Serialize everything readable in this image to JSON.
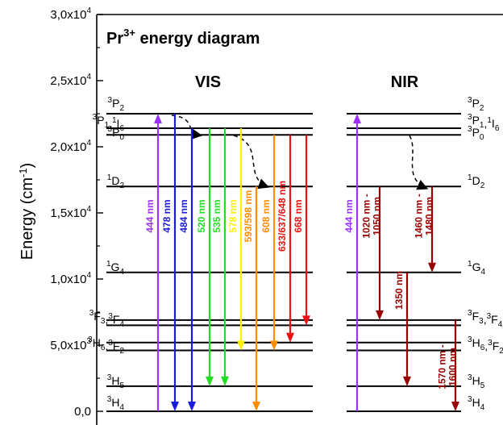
{
  "title": {
    "main": "Pr",
    "sup": "3+",
    "rest": " energy diagram"
  },
  "sections": {
    "vis": "VIS",
    "nir": "NIR"
  },
  "y_axis": {
    "label": "Energy (cm",
    "label_sup": "-1",
    "label_end": ")",
    "range": [
      0,
      30000
    ],
    "ticks": [
      {
        "value": 0,
        "mant": "0,0",
        "exp": ""
      },
      {
        "value": 5000,
        "mant": "5,0x10",
        "exp": "3"
      },
      {
        "value": 10000,
        "mant": "1,0x10",
        "exp": "4"
      },
      {
        "value": 15000,
        "mant": "1,5x10",
        "exp": "4"
      },
      {
        "value": 20000,
        "mant": "2,0x10",
        "exp": "4"
      },
      {
        "value": 25000,
        "mant": "2,5x10",
        "exp": "4"
      },
      {
        "value": 30000,
        "mant": "3,0x10",
        "exp": "4"
      }
    ]
  },
  "levels": [
    {
      "id": "3P2",
      "energy": 22500,
      "label": "3P2"
    },
    {
      "id": "3P1",
      "energy": 21400,
      "label": "3P1,1I6"
    },
    {
      "id": "3P0",
      "energy": 20900,
      "label": "3P0"
    },
    {
      "id": "1D2",
      "energy": 17000,
      "label": "1D2"
    },
    {
      "id": "1G4",
      "energy": 10500,
      "label": "1G4"
    },
    {
      "id": "3F4",
      "energy": 6900,
      "label": "3F3,3F4"
    },
    {
      "id": "3F3",
      "energy": 6500,
      "label": ""
    },
    {
      "id": "3F2",
      "energy": 5200,
      "label": "3H6,3F2"
    },
    {
      "id": "3H6",
      "energy": 4600,
      "label": ""
    },
    {
      "id": "3H5",
      "energy": 1900,
      "label": "3H5"
    },
    {
      "id": "3H4",
      "energy": 0,
      "label": "3H4"
    }
  ],
  "level_labels": {
    "vis": [
      {
        "id": "3P2",
        "energy": 22500,
        "parts": [
          [
            "3",
            "P"
          ],
          [
            "",
            "2"
          ]
        ]
      },
      {
        "id": "3P1",
        "energy": 21400,
        "parts": [
          [
            "3",
            "P"
          ],
          [
            "",
            "1"
          ],
          [
            ",",
            ""
          ],
          [
            "1",
            "I"
          ],
          [
            "",
            "6"
          ]
        ]
      },
      {
        "id": "3P0",
        "energy": 20900,
        "parts": [
          [
            "3",
            "P"
          ],
          [
            "",
            "0"
          ]
        ]
      },
      {
        "id": "1D2",
        "energy": 17000,
        "parts": [
          [
            "1",
            "D"
          ],
          [
            "",
            "2"
          ]
        ]
      },
      {
        "id": "1G4",
        "energy": 10500,
        "parts": [
          [
            "1",
            "G"
          ],
          [
            "",
            "4"
          ]
        ]
      },
      {
        "id": "3F34",
        "energy": 6900,
        "parts": [
          [
            "3",
            "F"
          ],
          [
            "",
            "3"
          ],
          [
            ",",
            ""
          ],
          [
            "3",
            "F"
          ],
          [
            "",
            "4"
          ]
        ]
      },
      {
        "id": "3H6F2",
        "energy": 5000,
        "parts": [
          [
            "3",
            "H"
          ],
          [
            "",
            "6"
          ],
          [
            ",",
            ""
          ],
          [
            "3",
            "F"
          ],
          [
            "",
            "2"
          ]
        ]
      },
      {
        "id": "3H5",
        "energy": 1900,
        "parts": [
          [
            "3",
            "H"
          ],
          [
            "",
            "5"
          ]
        ]
      },
      {
        "id": "3H4",
        "energy": 0,
        "parts": [
          [
            "3",
            "H"
          ],
          [
            "",
            "4"
          ]
        ]
      }
    ]
  },
  "vis_transitions": [
    {
      "label": "444 nm",
      "from": 0,
      "to": 22500,
      "color": "#9b30ff",
      "up": true
    },
    {
      "label": "478 nm",
      "from": 22500,
      "to": 0,
      "color": "#1a1adf"
    },
    {
      "label": "484 nm",
      "from": 21400,
      "to": 0,
      "color": "#1a1adf"
    },
    {
      "label": "520 nm",
      "from": 21400,
      "to": 1900,
      "color": "#22dd22"
    },
    {
      "label": "535 nm",
      "from": 21400,
      "to": 1900,
      "color": "#22dd22"
    },
    {
      "label": "578 nm",
      "from": 21400,
      "to": 4600,
      "color": "#ffee00"
    },
    {
      "label": "593/598 nm",
      "from": 17000,
      "to": 0,
      "color": "#ff8c00"
    },
    {
      "label": "608 nm",
      "from": 20900,
      "to": 4600,
      "color": "#ff8c00"
    },
    {
      "label": "633/637/648 nm",
      "from": 20900,
      "to": 5200,
      "color": "#ee1111"
    },
    {
      "label": "668 nm",
      "from": 20900,
      "to": 6500,
      "color": "#ee1111"
    }
  ],
  "nir_transitions": [
    {
      "label": "444 nm",
      "from": 0,
      "to": 22500,
      "color": "#9b30ff",
      "up": true
    },
    {
      "label": "1020 nm - 1050 nm",
      "from": 17000,
      "to": 6900,
      "color": "#990000"
    },
    {
      "label": "1460 nm - 1480 nm",
      "from": 17000,
      "to": 10500,
      "color": "#990000"
    },
    {
      "label": "1350 nm",
      "from": 10500,
      "to": 1900,
      "color": "#990000"
    },
    {
      "label": "1570 nm - 1600 nm",
      "from": 6900,
      "to": 0,
      "color": "#990000"
    }
  ]
}
